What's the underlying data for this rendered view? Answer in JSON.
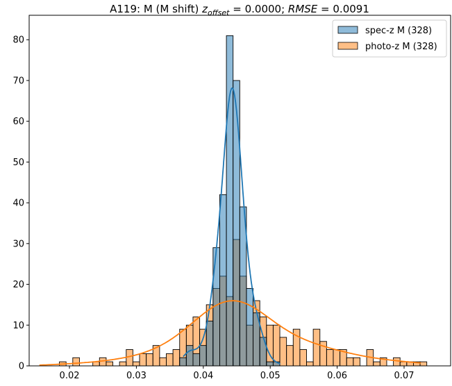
{
  "chart_data": {
    "type": "bar",
    "title": {
      "prefix": "A119: M (M shift) ",
      "z": "z",
      "z_sub": "offset",
      "z_val": " = 0.0000; ",
      "rmse": "RMSE",
      "rmse_val": " = 0.0091"
    },
    "xlabel": "",
    "ylabel": "",
    "xlim": [
      0.01398,
      0.07695
    ],
    "ylim": [
      0,
      86
    ],
    "xticks": [
      0.02,
      0.03,
      0.04,
      0.05,
      0.06,
      0.07
    ],
    "xtick_labels": [
      "0.02",
      "0.03",
      "0.04",
      "0.05",
      "0.06",
      "0.07"
    ],
    "yticks": [
      0,
      10,
      20,
      30,
      40,
      50,
      60,
      70,
      80
    ],
    "ytick_labels": [
      "0",
      "10",
      "20",
      "30",
      "40",
      "50",
      "60",
      "70",
      "80"
    ],
    "bin_start": 0.0185,
    "bin_width": 0.000998,
    "legend_position": "top-right",
    "series": [
      {
        "name": "spec-z M (328)",
        "color": "#1f77b4",
        "first_bin": 18,
        "values": [
          2,
          5,
          3,
          5,
          11,
          29,
          42,
          81,
          70,
          39,
          19,
          13,
          7,
          1,
          1
        ],
        "kde_bandwidth": 0.00085,
        "kde_range": [
          0.037,
          0.0515
        ]
      },
      {
        "name": "photo-z M (328)",
        "color": "#ff7f0e",
        "first_bin": 0,
        "values": [
          1,
          0,
          2,
          0,
          0,
          1,
          2,
          1,
          0,
          1,
          4,
          1,
          3,
          3,
          5,
          2,
          3,
          4,
          9,
          10,
          12,
          9,
          15,
          19,
          22,
          17,
          31,
          22,
          10,
          16,
          12,
          10,
          10,
          7,
          5,
          9,
          4,
          1,
          9,
          6,
          4,
          4,
          4,
          2,
          2,
          0,
          4,
          1,
          2,
          0,
          2,
          1,
          1,
          1,
          1
        ],
        "kde_bandwidth": 0.0042,
        "kde_range": [
          0.0155,
          0.0725
        ]
      }
    ]
  }
}
